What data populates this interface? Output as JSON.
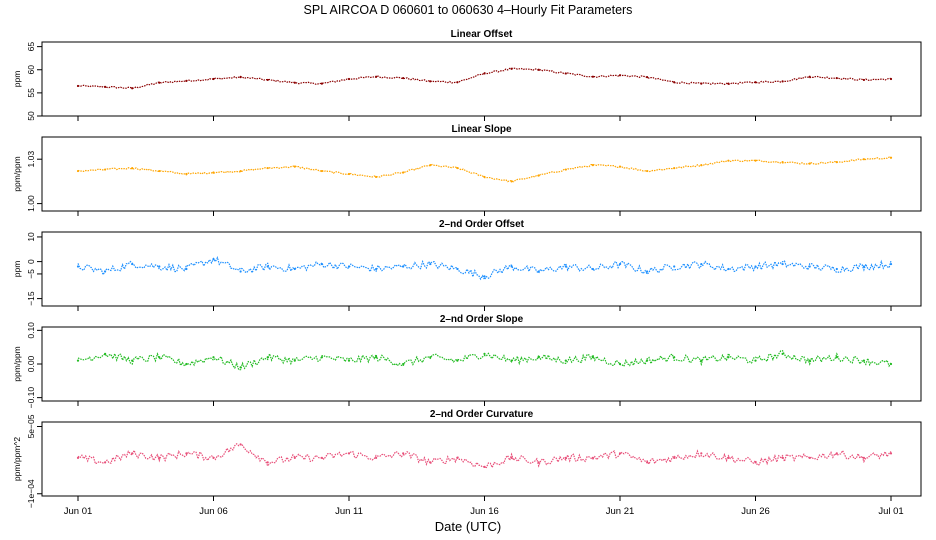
{
  "figure": {
    "title": "SPL   AIRCOA D   060601 to 060630   4–Hourly Fit Parameters",
    "xlabel": "Date (UTC)",
    "x_ticks": [
      "Jun 01",
      "Jun 06",
      "Jun 11",
      "Jun 16",
      "Jun 21",
      "Jun 26",
      "Jul 01"
    ]
  },
  "chart_data": [
    {
      "type": "line",
      "title": "Linear Offset",
      "ylabel": "ppm",
      "color": "#8b0000",
      "ylim": [
        50,
        66
      ],
      "y_ticks": [
        "50",
        "55",
        "60",
        "65"
      ],
      "y_tick_values": [
        50,
        55,
        60,
        65
      ],
      "x": [
        0,
        1,
        2,
        3,
        4,
        5,
        6,
        7,
        8,
        9,
        10,
        11,
        12,
        13,
        14,
        15,
        16,
        17,
        18,
        19,
        20,
        21,
        22,
        23,
        24,
        25,
        26,
        27,
        28,
        29,
        30
      ],
      "values": [
        56.5,
        56.3,
        56.0,
        57.2,
        57.6,
        58.0,
        58.4,
        57.8,
        57.2,
        57.0,
        58.0,
        58.5,
        58.2,
        57.5,
        57.3,
        59.2,
        60.2,
        60.0,
        59.2,
        58.5,
        58.8,
        58.4,
        57.3,
        57.0,
        57.0,
        57.3,
        57.5,
        58.5,
        58.2,
        57.8,
        58.0
      ]
    },
    {
      "type": "line",
      "title": "Linear Slope",
      "ylabel": "ppm/ppm",
      "color": "#ffa500",
      "ylim": [
        0.995,
        1.045
      ],
      "y_ticks": [
        "1.00",
        "1.03"
      ],
      "y_tick_values": [
        1.0,
        1.03
      ],
      "x": [
        0,
        1,
        2,
        3,
        4,
        5,
        6,
        7,
        8,
        9,
        10,
        11,
        12,
        13,
        14,
        15,
        16,
        17,
        18,
        19,
        20,
        21,
        22,
        23,
        24,
        25,
        26,
        27,
        28,
        29,
        30
      ],
      "values": [
        1.022,
        1.023,
        1.024,
        1.022,
        1.02,
        1.021,
        1.022,
        1.024,
        1.025,
        1.022,
        1.02,
        1.018,
        1.021,
        1.026,
        1.024,
        1.018,
        1.015,
        1.019,
        1.023,
        1.026,
        1.025,
        1.022,
        1.024,
        1.026,
        1.029,
        1.029,
        1.028,
        1.027,
        1.028,
        1.03,
        1.031
      ]
    },
    {
      "type": "line",
      "title": "2–nd Order Offset",
      "ylabel": "ppm",
      "color": "#1e90ff",
      "ylim": [
        -18,
        12
      ],
      "y_ticks": [
        "−15",
        "−5",
        "0",
        "10"
      ],
      "y_tick_values": [
        -15,
        -5,
        0,
        10
      ],
      "x": [
        0,
        1,
        2,
        3,
        4,
        5,
        6,
        7,
        8,
        9,
        10,
        11,
        12,
        13,
        14,
        15,
        16,
        17,
        18,
        19,
        20,
        21,
        22,
        23,
        24,
        25,
        26,
        27,
        28,
        29,
        30
      ],
      "values": [
        -2,
        -4,
        -1,
        -2,
        -3,
        1,
        -4,
        -2,
        -3,
        -1,
        -2,
        -3,
        -2,
        -1,
        -3,
        -6,
        -2,
        -4,
        -2,
        -3,
        -1,
        -4,
        -2,
        -1,
        -3,
        -2,
        -1,
        -2,
        -3,
        -2,
        -1
      ]
    },
    {
      "type": "line",
      "title": "2–nd Order Slope",
      "ylabel": "ppm/ppm",
      "color": "#22bb22",
      "ylim": [
        -0.11,
        0.11
      ],
      "y_ticks": [
        "−0.10",
        "0.00",
        "0.10"
      ],
      "y_tick_values": [
        -0.1,
        0.0,
        0.1
      ],
      "x": [
        0,
        1,
        2,
        3,
        4,
        5,
        6,
        7,
        8,
        9,
        10,
        11,
        12,
        13,
        14,
        15,
        16,
        17,
        18,
        19,
        20,
        21,
        22,
        23,
        24,
        25,
        26,
        27,
        28,
        29,
        30
      ],
      "values": [
        0.01,
        0.03,
        0.01,
        0.02,
        0.0,
        0.02,
        -0.01,
        0.02,
        0.01,
        0.02,
        0.01,
        0.02,
        0.0,
        0.02,
        0.01,
        0.03,
        0.01,
        0.02,
        0.01,
        0.02,
        0.0,
        0.01,
        0.02,
        0.01,
        0.02,
        0.01,
        0.03,
        0.01,
        0.02,
        0.01,
        0.0
      ]
    },
    {
      "type": "line",
      "title": "2–nd Order Curvature",
      "ylabel": "ppm/ppm^2",
      "color": "#e8507a",
      "ylim": [
        -0.000105,
        6e-05
      ],
      "y_ticks": [
        "−1e−04",
        "5e−05"
      ],
      "y_tick_values": [
        -0.0001,
        5e-05
      ],
      "x": [
        0,
        1,
        2,
        3,
        4,
        5,
        6,
        7,
        8,
        9,
        10,
        11,
        12,
        13,
        14,
        15,
        16,
        17,
        18,
        19,
        20,
        21,
        22,
        23,
        24,
        25,
        26,
        27,
        28,
        29,
        30
      ],
      "values": [
        -2e-05,
        -3e-05,
        -1e-05,
        -2e-05,
        -1e-05,
        -2e-05,
        1e-05,
        -3e-05,
        -2e-05,
        -2e-05,
        -1e-05,
        -2e-05,
        -1e-05,
        -3e-05,
        -2e-05,
        -4e-05,
        -2e-05,
        -3e-05,
        -2e-05,
        -2e-05,
        -1e-05,
        -3e-05,
        -2e-05,
        -1e-05,
        -2e-05,
        -3e-05,
        -2e-05,
        -2e-05,
        -1e-05,
        -2e-05,
        -1e-05
      ]
    }
  ]
}
